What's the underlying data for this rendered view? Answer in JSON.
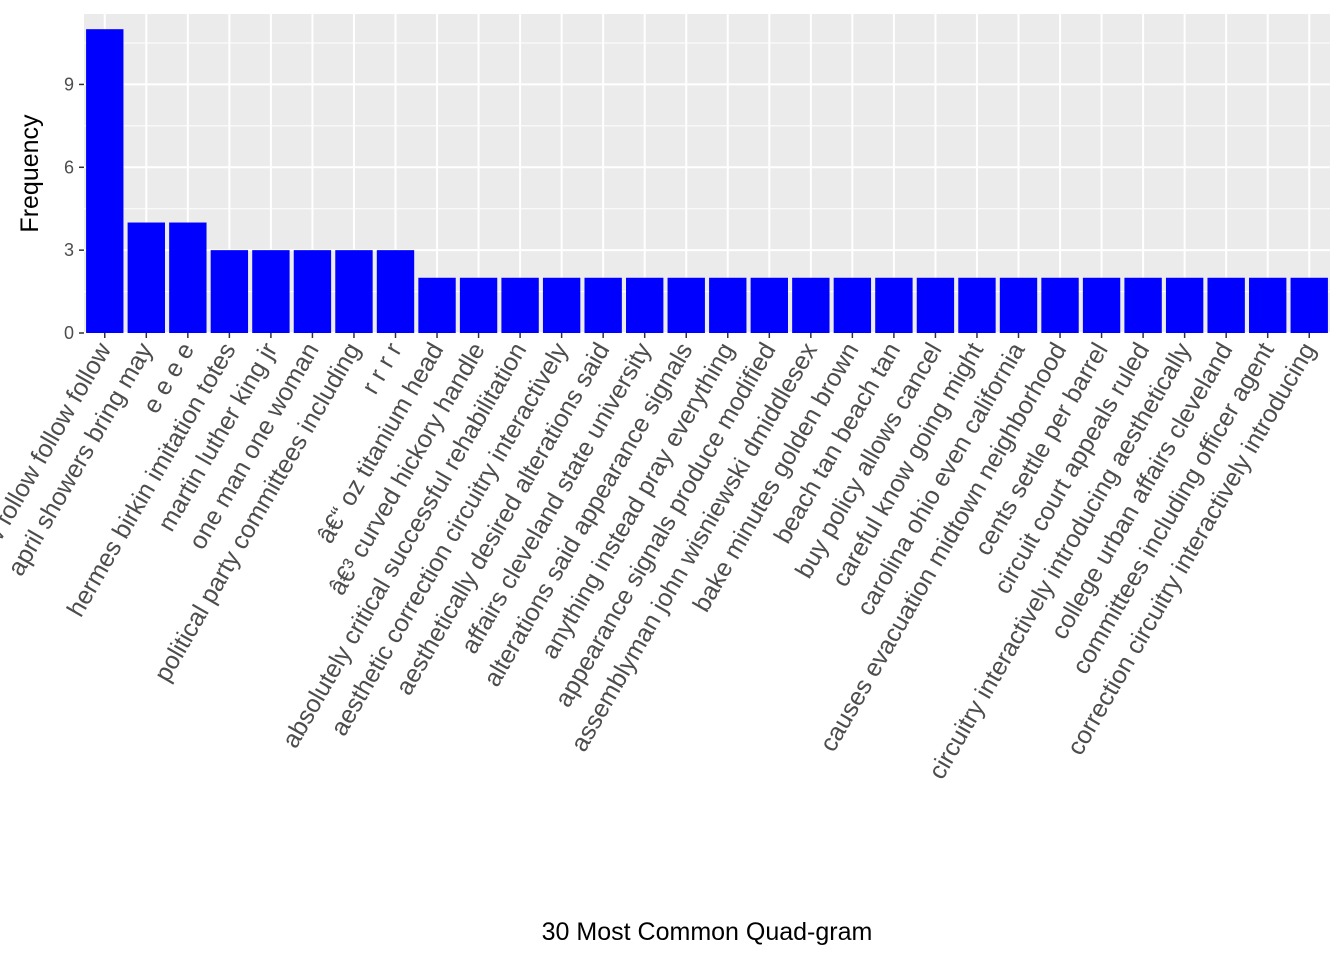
{
  "chart_data": {
    "type": "bar",
    "xlabel": "30 Most Common Quad-gram",
    "ylabel": "Frequency",
    "ylim": [
      0,
      11.55
    ],
    "y_ticks": [
      0,
      3,
      6,
      9
    ],
    "y_tick_labels": [
      "0",
      "3",
      "6",
      "9"
    ],
    "grid": true,
    "bar_color": "#0000ff",
    "panel_background": "#ebebeb",
    "categories": [
      "follow follow follow follow",
      "april showers bring may",
      "e e e e",
      "hermes birkin imitation totes",
      "martin luther king jr",
      "one man one woman",
      "political party committees including",
      "r r r r",
      "â€“ oz titanium head",
      "â€³ curved hickory handle",
      "absolutely critical successful rehabilitation",
      "aesthetic correction circuitry interactively",
      "aesthetically desired alterations said",
      "affairs cleveland state university",
      "alterations said appearance signals",
      "anything instead pray everything",
      "appearance signals produce modified",
      "assemblyman john wisniewski dmiddlesex",
      "bake minutes golden brown",
      "beach tan beach tan",
      "buy policy allows cancel",
      "careful know going might",
      "carolina ohio even california",
      "causes evacuation midtown neighborhood",
      "cents settle per barrel",
      "circuit court appeals ruled",
      "circuitry interactively introducing aesthetically",
      "college urban affairs cleveland",
      "committees including officer agent",
      "correction circuitry interactively introducing"
    ],
    "values": [
      11,
      4,
      4,
      3,
      3,
      3,
      3,
      3,
      2,
      2,
      2,
      2,
      2,
      2,
      2,
      2,
      2,
      2,
      2,
      2,
      2,
      2,
      2,
      2,
      2,
      2,
      2,
      2,
      2,
      2
    ]
  }
}
